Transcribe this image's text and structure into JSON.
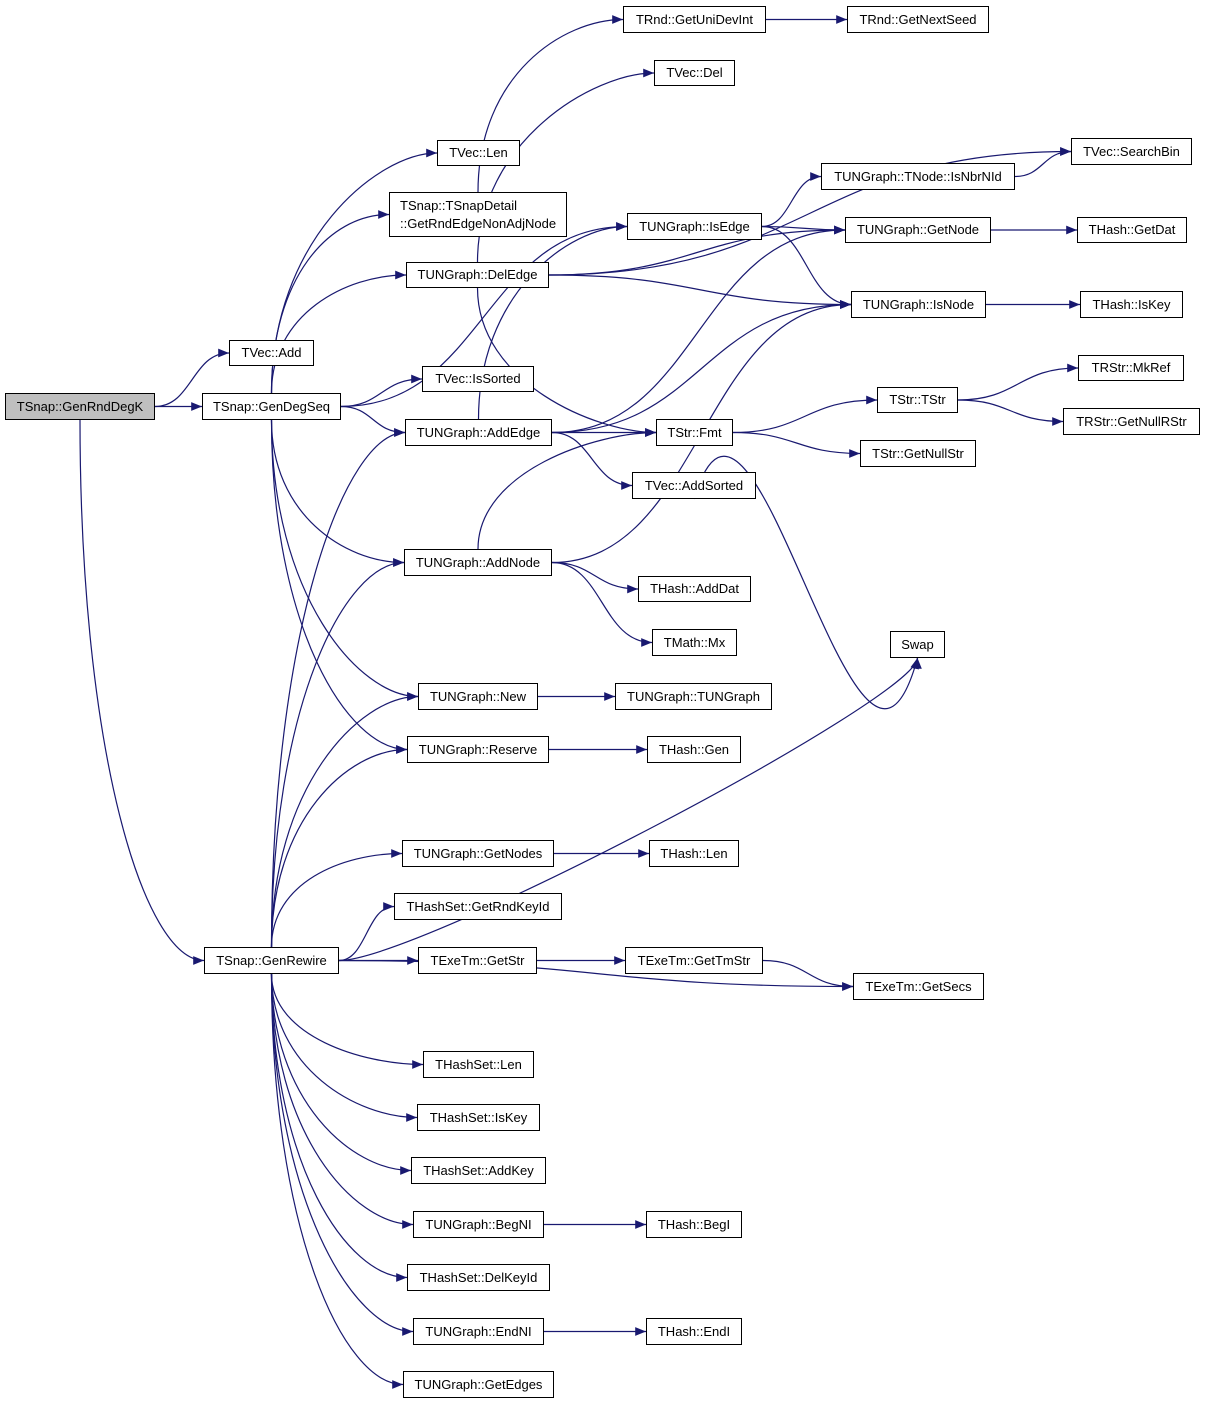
{
  "diagram": {
    "type": "call-graph",
    "edge_color": "#191970",
    "root_fill": "#bfbfbf",
    "nodes": [
      {
        "id": "genrnddegk",
        "label": "TSnap::GenRndDegK",
        "root": true
      },
      {
        "id": "vecadd",
        "label": "TVec::Add"
      },
      {
        "id": "gendegseq",
        "label": "TSnap::GenDegSeq"
      },
      {
        "id": "veclen",
        "label": "TVec::Len"
      },
      {
        "id": "getrndedge",
        "label": "TSnap::TSnapDetail\n::GetRndEdgeNonAdjNode"
      },
      {
        "id": "getunidevint",
        "label": "TRnd::GetUniDevInt"
      },
      {
        "id": "getnextseed",
        "label": "TRnd::GetNextSeed"
      },
      {
        "id": "vecdel",
        "label": "TVec::Del"
      },
      {
        "id": "searchbin",
        "label": "TVec::SearchBin"
      },
      {
        "id": "isnbrnid",
        "label": "TUNGraph::TNode::IsNbrNId"
      },
      {
        "id": "isedge",
        "label": "TUNGraph::IsEdge"
      },
      {
        "id": "getnode",
        "label": "TUNGraph::GetNode"
      },
      {
        "id": "hashgetdat",
        "label": "THash::GetDat"
      },
      {
        "id": "deledge",
        "label": "TUNGraph::DelEdge"
      },
      {
        "id": "isnode",
        "label": "TUNGraph::IsNode"
      },
      {
        "id": "hashiskey",
        "label": "THash::IsKey"
      },
      {
        "id": "issorted",
        "label": "TVec::IsSorted"
      },
      {
        "id": "mkref",
        "label": "TRStr::MkRef"
      },
      {
        "id": "tstr",
        "label": "TStr::TStr"
      },
      {
        "id": "getnullrstr",
        "label": "TRStr::GetNullRStr"
      },
      {
        "id": "addedge",
        "label": "TUNGraph::AddEdge"
      },
      {
        "id": "fmt",
        "label": "TStr::Fmt"
      },
      {
        "id": "getnullstr",
        "label": "TStr::GetNullStr"
      },
      {
        "id": "addsorted",
        "label": "TVec::AddSorted"
      },
      {
        "id": "addnode",
        "label": "TUNGraph::AddNode"
      },
      {
        "id": "adddat",
        "label": "THash::AddDat"
      },
      {
        "id": "mx",
        "label": "TMath::Mx"
      },
      {
        "id": "swap",
        "label": "Swap"
      },
      {
        "id": "new",
        "label": "TUNGraph::New"
      },
      {
        "id": "tungraph",
        "label": "TUNGraph::TUNGraph"
      },
      {
        "id": "reserve",
        "label": "TUNGraph::Reserve"
      },
      {
        "id": "hashgen",
        "label": "THash::Gen"
      },
      {
        "id": "getnodes",
        "label": "TUNGraph::GetNodes"
      },
      {
        "id": "hashlen",
        "label": "THash::Len"
      },
      {
        "id": "getrndkeyid",
        "label": "THashSet::GetRndKeyId"
      },
      {
        "id": "genrewire",
        "label": "TSnap::GenRewire"
      },
      {
        "id": "getstr",
        "label": "TExeTm::GetStr"
      },
      {
        "id": "gettmstr",
        "label": "TExeTm::GetTmStr"
      },
      {
        "id": "getsecs",
        "label": "TExeTm::GetSecs"
      },
      {
        "id": "hashsetlen",
        "label": "THashSet::Len"
      },
      {
        "id": "hashsetiskey",
        "label": "THashSet::IsKey"
      },
      {
        "id": "addkey",
        "label": "THashSet::AddKey"
      },
      {
        "id": "begni",
        "label": "TUNGraph::BegNI"
      },
      {
        "id": "begi",
        "label": "THash::BegI"
      },
      {
        "id": "delkeyid",
        "label": "THashSet::DelKeyId"
      },
      {
        "id": "endni",
        "label": "TUNGraph::EndNI"
      },
      {
        "id": "endi",
        "label": "THash::EndI"
      },
      {
        "id": "getedges",
        "label": "TUNGraph::GetEdges"
      }
    ],
    "edges": [
      [
        "genrnddegk",
        "vecadd"
      ],
      [
        "genrnddegk",
        "gendegseq"
      ],
      [
        "genrnddegk",
        "genrewire"
      ],
      [
        "gendegseq",
        "veclen"
      ],
      [
        "gendegseq",
        "getrndedge"
      ],
      [
        "gendegseq",
        "deledge"
      ],
      [
        "gendegseq",
        "isedge"
      ],
      [
        "gendegseq",
        "issorted"
      ],
      [
        "gendegseq",
        "addedge"
      ],
      [
        "gendegseq",
        "addnode"
      ],
      [
        "gendegseq",
        "new"
      ],
      [
        "gendegseq",
        "reserve"
      ],
      [
        "getrndedge",
        "getunidevint"
      ],
      [
        "getunidevint",
        "getnextseed"
      ],
      [
        "deledge",
        "vecdel"
      ],
      [
        "deledge",
        "searchbin"
      ],
      [
        "deledge",
        "getnode"
      ],
      [
        "deledge",
        "isnode"
      ],
      [
        "deledge",
        "fmt"
      ],
      [
        "isedge",
        "isnbrnid"
      ],
      [
        "isedge",
        "getnode"
      ],
      [
        "isedge",
        "isnode"
      ],
      [
        "isnbrnid",
        "searchbin"
      ],
      [
        "getnode",
        "hashgetdat"
      ],
      [
        "isnode",
        "hashiskey"
      ],
      [
        "addedge",
        "isedge"
      ],
      [
        "addedge",
        "getnode"
      ],
      [
        "addedge",
        "isnode"
      ],
      [
        "addedge",
        "fmt"
      ],
      [
        "addedge",
        "addsorted"
      ],
      [
        "fmt",
        "tstr"
      ],
      [
        "fmt",
        "getnullstr"
      ],
      [
        "tstr",
        "mkref"
      ],
      [
        "tstr",
        "getnullrstr"
      ],
      [
        "addsorted",
        "swap"
      ],
      [
        "addnode",
        "fmt"
      ],
      [
        "addnode",
        "isnode"
      ],
      [
        "addnode",
        "adddat"
      ],
      [
        "addnode",
        "mx"
      ],
      [
        "new",
        "tungraph"
      ],
      [
        "reserve",
        "hashgen"
      ],
      [
        "getnodes",
        "hashlen"
      ],
      [
        "getstr",
        "gettmstr"
      ],
      [
        "gettmstr",
        "getsecs"
      ],
      [
        "begni",
        "begi"
      ],
      [
        "endni",
        "endi"
      ],
      [
        "genrewire",
        "addedge"
      ],
      [
        "genrewire",
        "addnode"
      ],
      [
        "genrewire",
        "new"
      ],
      [
        "genrewire",
        "reserve"
      ],
      [
        "genrewire",
        "swap"
      ],
      [
        "genrewire",
        "getnodes"
      ],
      [
        "genrewire",
        "getrndkeyid"
      ],
      [
        "genrewire",
        "getstr"
      ],
      [
        "genrewire",
        "getsecs"
      ],
      [
        "genrewire",
        "hashsetlen"
      ],
      [
        "genrewire",
        "hashsetiskey"
      ],
      [
        "genrewire",
        "addkey"
      ],
      [
        "genrewire",
        "begni"
      ],
      [
        "genrewire",
        "delkeyid"
      ],
      [
        "genrewire",
        "endni"
      ],
      [
        "genrewire",
        "getedges"
      ]
    ]
  }
}
